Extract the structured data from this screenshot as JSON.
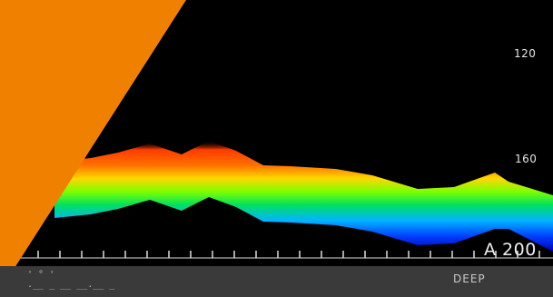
{
  "sonar": {
    "depth_labels": {
      "upper": "120",
      "lower": "160",
      "bottom": "A 200"
    },
    "mode_label": "DEEP",
    "bar_marks": {
      "row1": "'   °   '",
      "row2": ".__ _ __ __.__ _"
    },
    "icons": [
      "ship-icon"
    ],
    "colors": {
      "overlay": "#f08000",
      "background": "#000000",
      "bar": "#3a3a3a",
      "ship": "#c8502a"
    }
  }
}
